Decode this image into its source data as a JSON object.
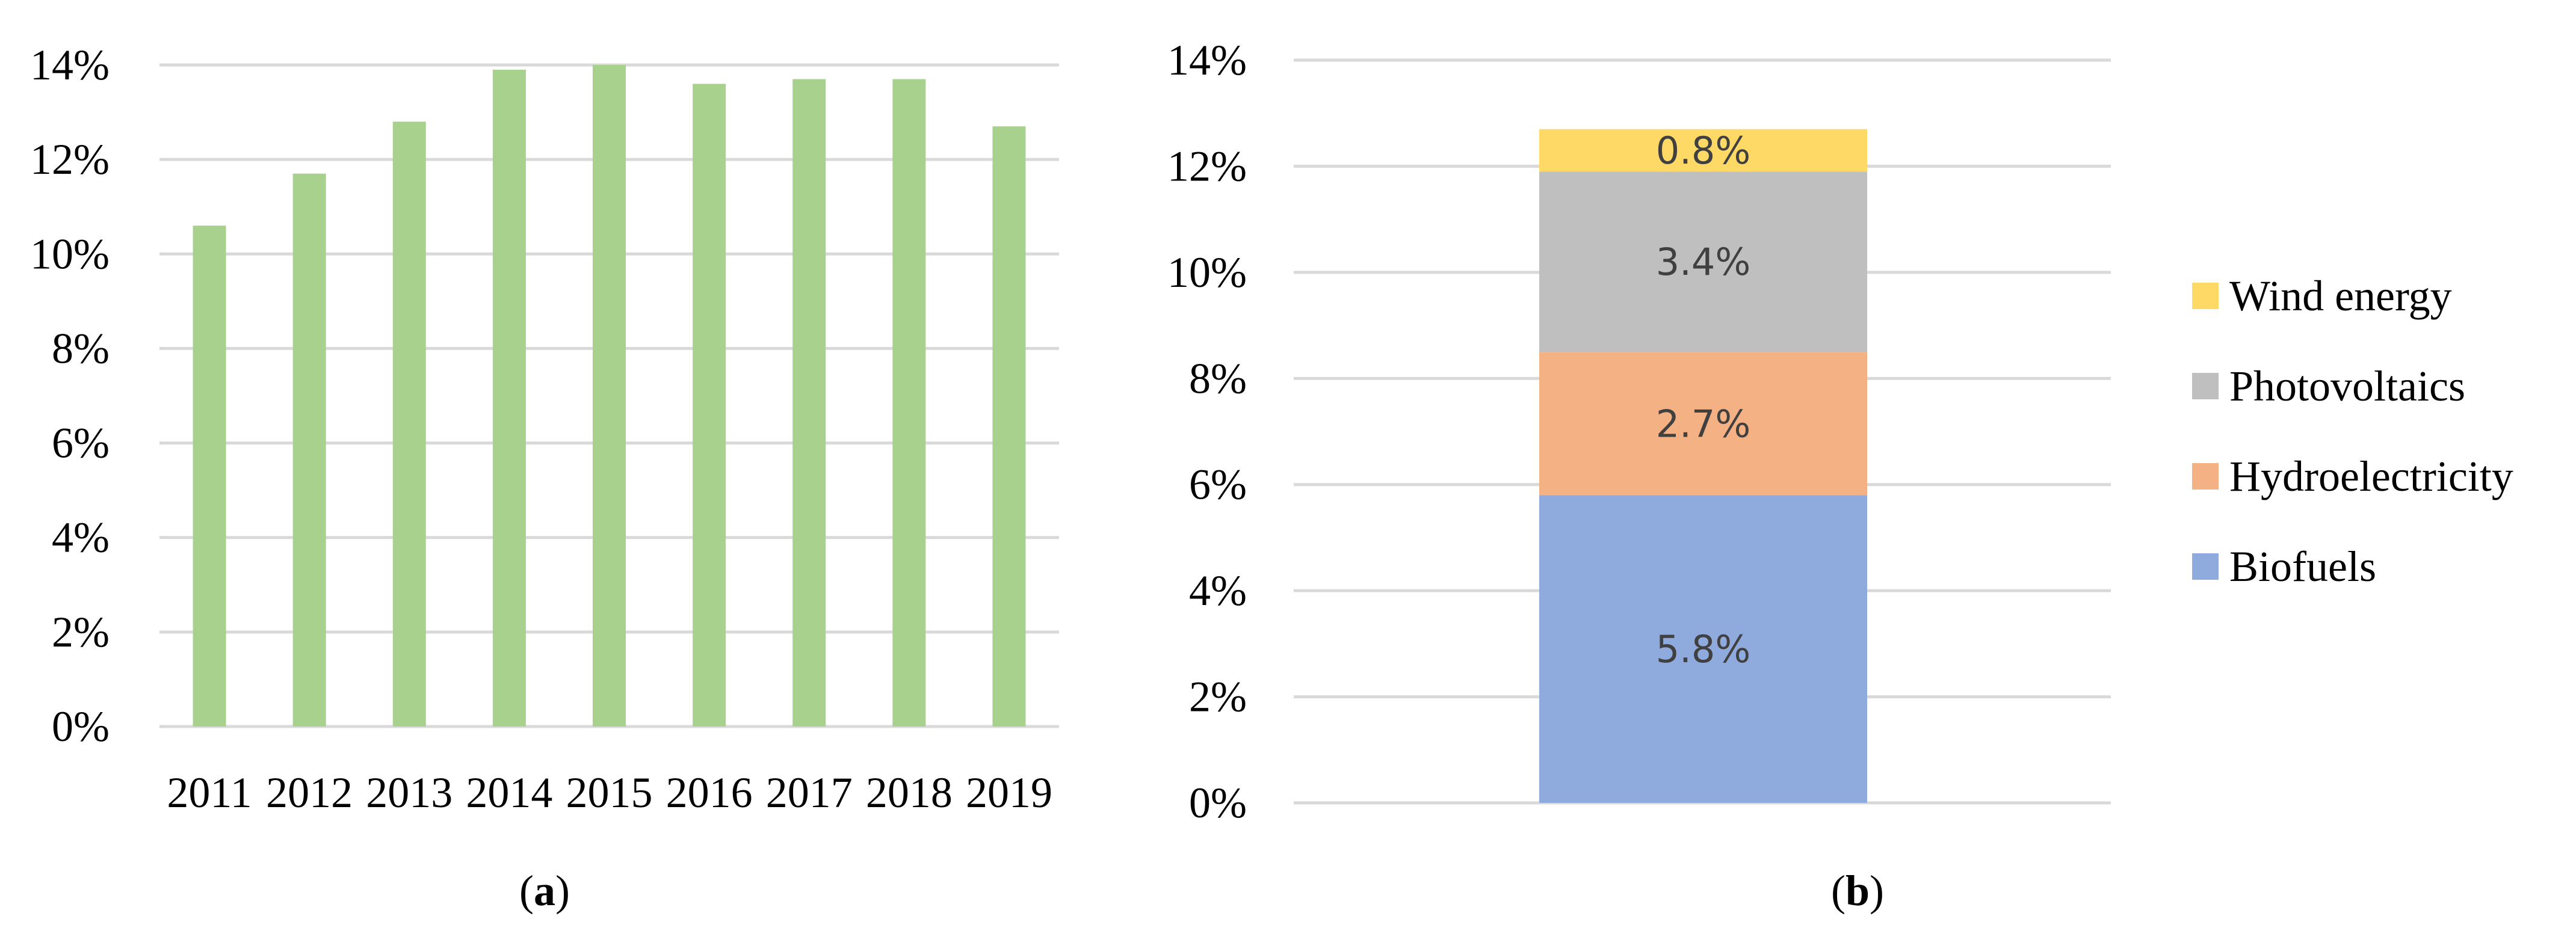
{
  "chart_data": [
    {
      "panel": "a",
      "caption_letter": "a",
      "type": "bar",
      "categories": [
        "2011",
        "2012",
        "2013",
        "2014",
        "2015",
        "2016",
        "2017",
        "2018",
        "2019"
      ],
      "values": [
        10.6,
        11.7,
        12.8,
        13.9,
        14.0,
        13.6,
        13.7,
        13.7,
        12.7
      ],
      "ylim": [
        0,
        14
      ],
      "yticks": [
        "0%",
        "2%",
        "4%",
        "6%",
        "8%",
        "10%",
        "12%",
        "14%"
      ],
      "title": "",
      "xlabel": "",
      "ylabel": "",
      "grid": true,
      "colors": {
        "bar": "#a9d18e",
        "grid": "#d9d9d9"
      }
    },
    {
      "panel": "b",
      "caption_letter": "b",
      "type": "bar",
      "stacked": true,
      "categories": [
        ""
      ],
      "series": [
        {
          "name": "Biofuels",
          "values": [
            5.8
          ],
          "label": "5.8%",
          "color": "#8faadc"
        },
        {
          "name": "Hydroelectricity",
          "values": [
            2.7
          ],
          "label": "2.7%",
          "color": "#f4b183"
        },
        {
          "name": "Photovoltaics",
          "values": [
            3.4
          ],
          "label": "3.4%",
          "color": "#bfbfbf"
        },
        {
          "name": "Wind energy",
          "values": [
            0.8
          ],
          "label": "0.8%",
          "color": "#ffd966"
        }
      ],
      "ylim": [
        0,
        14
      ],
      "yticks": [
        "0%",
        "2%",
        "4%",
        "6%",
        "8%",
        "10%",
        "12%",
        "14%"
      ],
      "legend_position": "right",
      "legend_order": [
        "Wind energy",
        "Photovoltaics",
        "Hydroelectricity",
        "Biofuels"
      ],
      "title": "",
      "xlabel": "",
      "ylabel": "",
      "grid": true,
      "colors": {
        "grid": "#d9d9d9",
        "label_text": "#404040"
      }
    }
  ]
}
